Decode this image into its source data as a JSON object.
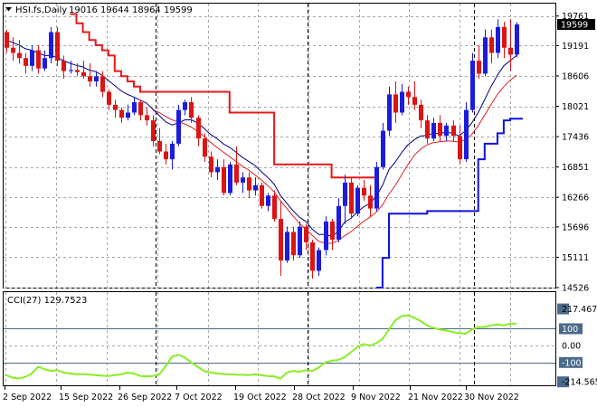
{
  "chart_data": [
    {
      "type": "candlestick",
      "header": {
        "symbol": "HSI.fs,Daily",
        "ohlc_text": "19016 19644 18964 19599"
      },
      "last_price_label": "19599",
      "last_price": 19599,
      "ylim": [
        14526,
        20000
      ],
      "y_ticks": [
        "19761",
        "19191",
        "18606",
        "18021",
        "17436",
        "16851",
        "16266",
        "15696",
        "15111",
        "14526"
      ],
      "x_tick_labels": [
        "2 Sep 2022",
        "15 Sep 2022",
        "26 Sep 2022",
        "7 Oct 2022",
        "19 Oct 2022",
        "28 Oct 2022",
        "9 Nov 2022",
        "21 Nov 2022",
        "30 Nov 2022"
      ],
      "colors": {
        "bull": "#1c1cdc",
        "bear": "#dc1414",
        "fast_ma": "#000080",
        "slow_ma": "#e02020",
        "trail_high": "#e81818",
        "trail_low": "#1010e0",
        "grid": "#a9a9a9",
        "marker": "#000000"
      },
      "candles": [
        [
          19450,
          19500,
          19050,
          19150
        ],
        [
          19150,
          19350,
          18900,
          19050
        ],
        [
          19050,
          19300,
          18850,
          18950
        ],
        [
          18950,
          19050,
          18650,
          18800
        ],
        [
          18800,
          19200,
          18700,
          19100
        ],
        [
          19100,
          19200,
          18650,
          18750
        ],
        [
          18750,
          19100,
          18700,
          18950
        ],
        [
          18950,
          19550,
          18850,
          19450
        ],
        [
          19450,
          19550,
          18800,
          18900
        ],
        [
          18900,
          19000,
          18550,
          18700
        ],
        [
          18700,
          18900,
          18650,
          18720
        ],
        [
          18720,
          18850,
          18600,
          18680
        ],
        [
          18680,
          18900,
          18550,
          18600
        ],
        [
          18600,
          18850,
          18400,
          18500
        ],
        [
          18500,
          18700,
          18400,
          18600
        ],
        [
          18600,
          18700,
          18200,
          18300
        ],
        [
          18300,
          18350,
          17950,
          18050
        ],
        [
          18050,
          18150,
          17800,
          17950
        ],
        [
          17950,
          18000,
          17700,
          17800
        ],
        [
          17800,
          18050,
          17750,
          17900
        ],
        [
          17900,
          18200,
          17850,
          18100
        ],
        [
          18100,
          18150,
          17750,
          17850
        ],
        [
          17850,
          18000,
          17650,
          17750
        ],
        [
          17750,
          17850,
          17250,
          17350
        ],
        [
          17350,
          17600,
          17100,
          17150
        ],
        [
          17150,
          17300,
          16900,
          17000
        ],
        [
          17000,
          17350,
          16800,
          17300
        ],
        [
          17300,
          18050,
          17250,
          17950
        ],
        [
          17950,
          18150,
          17850,
          18100
        ],
        [
          18100,
          18200,
          17700,
          17800
        ],
        [
          17800,
          17850,
          17250,
          17400
        ],
        [
          17400,
          17500,
          16950,
          17050
        ],
        [
          17050,
          17150,
          16650,
          16750
        ],
        [
          16750,
          17000,
          16600,
          16850
        ],
        [
          16850,
          17000,
          16300,
          16350
        ],
        [
          16350,
          16950,
          16300,
          16900
        ],
        [
          16900,
          17250,
          16500,
          16550
        ],
        [
          16550,
          16750,
          16350,
          16650
        ],
        [
          16650,
          16750,
          16250,
          16400
        ],
        [
          16400,
          16650,
          16300,
          16500
        ],
        [
          16500,
          16550,
          16050,
          16100
        ],
        [
          16100,
          16350,
          16000,
          16300
        ],
        [
          16300,
          16400,
          15800,
          15850
        ],
        [
          15850,
          16200,
          14750,
          15050
        ],
        [
          15050,
          15700,
          15000,
          15600
        ],
        [
          15600,
          15700,
          15050,
          15150
        ],
        [
          15150,
          15800,
          15100,
          15700
        ],
        [
          15700,
          15750,
          15250,
          15400
        ],
        [
          15400,
          15450,
          14700,
          14850
        ],
        [
          14850,
          15300,
          14750,
          15250
        ],
        [
          15250,
          15900,
          15150,
          15800
        ],
        [
          15800,
          15850,
          15250,
          15450
        ],
        [
          15450,
          16250,
          15400,
          16100
        ],
        [
          16100,
          16700,
          15750,
          16550
        ],
        [
          16550,
          16650,
          15850,
          15950
        ],
        [
          15950,
          16500,
          15900,
          16450
        ],
        [
          16450,
          16600,
          16200,
          16300
        ],
        [
          16300,
          16500,
          15900,
          16050
        ],
        [
          16050,
          16950,
          16000,
          16850
        ],
        [
          16850,
          17700,
          16800,
          17550
        ],
        [
          17550,
          18400,
          17450,
          18250
        ],
        [
          18250,
          18500,
          17700,
          17900
        ],
        [
          17900,
          18450,
          17850,
          18300
        ],
        [
          18300,
          18400,
          18050,
          18200
        ],
        [
          18200,
          18500,
          17950,
          18050
        ],
        [
          18050,
          18150,
          17600,
          17750
        ],
        [
          17750,
          17850,
          17300,
          17400
        ],
        [
          17400,
          17800,
          17350,
          17700
        ],
        [
          17700,
          17850,
          17350,
          17450
        ],
        [
          17450,
          17700,
          17350,
          17650
        ],
        [
          17650,
          17750,
          17350,
          17450
        ],
        [
          17450,
          17650,
          16900,
          17000
        ],
        [
          17000,
          18100,
          16950,
          17950
        ],
        [
          17950,
          19050,
          17900,
          18900
        ],
        [
          18900,
          19200,
          18550,
          18650
        ],
        [
          18650,
          19500,
          18600,
          19350
        ],
        [
          19350,
          19500,
          18850,
          19050
        ],
        [
          19050,
          19700,
          18950,
          19550
        ],
        [
          19550,
          19650,
          18950,
          19150
        ],
        [
          19150,
          19700,
          18700,
          19016
        ],
        [
          19016,
          19644,
          18964,
          19599
        ]
      ],
      "fast_ma": [
        19300,
        19250,
        19200,
        19130,
        19100,
        19050,
        19000,
        19000,
        18960,
        18900,
        18850,
        18810,
        18780,
        18720,
        18690,
        18620,
        18520,
        18420,
        18320,
        18250,
        18200,
        18140,
        18080,
        17960,
        17840,
        17720,
        17660,
        17700,
        17760,
        17760,
        17700,
        17600,
        17480,
        17400,
        17300,
        17230,
        17140,
        17040,
        16960,
        16880,
        16760,
        16650,
        16520,
        16300,
        16150,
        16000,
        15880,
        15800,
        15650,
        15550,
        15550,
        15520,
        15600,
        15780,
        15860,
        15980,
        16080,
        16150,
        16280,
        16500,
        16800,
        16950,
        17130,
        17280,
        17380,
        17450,
        17460,
        17500,
        17500,
        17520,
        17500,
        17450,
        17550,
        17700,
        17900,
        18150,
        18400,
        18620,
        18800,
        18900,
        19000
      ],
      "slow_ma": [
        null,
        null,
        null,
        null,
        null,
        null,
        null,
        null,
        null,
        null,
        null,
        null,
        null,
        null,
        null,
        null,
        null,
        null,
        null,
        null,
        null,
        null,
        null,
        17950,
        17900,
        17820,
        17760,
        17720,
        17680,
        17620,
        17540,
        17440,
        17330,
        17230,
        17140,
        17050,
        16960,
        16870,
        16790,
        16700,
        16600,
        16490,
        16370,
        16200,
        16050,
        15900,
        15760,
        15650,
        15530,
        15420,
        15380,
        15380,
        15430,
        15520,
        15600,
        15700,
        15800,
        15880,
        15980,
        16120,
        16330,
        16500,
        16700,
        16900,
        17080,
        17200,
        17280,
        17320,
        17340,
        17350,
        17350,
        17330,
        17380,
        17480,
        17650,
        17850,
        18050,
        18250,
        18400,
        18520,
        18620
      ],
      "trail_high": [
        null,
        null,
        null,
        null,
        null,
        null,
        null,
        null,
        null,
        null,
        19800,
        19620,
        19450,
        19300,
        19200,
        19100,
        19000,
        18700,
        18600,
        18500,
        18400,
        18300,
        18300,
        18300,
        18300,
        18300,
        18300,
        18300,
        18300,
        18300,
        18300,
        18300,
        18300,
        18300,
        18300,
        17900,
        17900,
        17900,
        17900,
        17900,
        17900,
        17900,
        16900,
        16900,
        16900,
        16900,
        16900,
        16900,
        16900,
        16900,
        16900,
        16650,
        16650,
        16650,
        16650,
        16650,
        16650,
        16650,
        16650,
        null,
        null,
        null,
        null,
        null,
        null,
        null,
        null,
        null,
        null,
        null,
        null,
        null,
        null,
        null,
        null,
        null,
        null,
        null,
        null,
        null,
        null
      ],
      "trail_low": [
        null,
        null,
        null,
        null,
        null,
        null,
        null,
        null,
        null,
        null,
        null,
        null,
        null,
        null,
        null,
        null,
        null,
        null,
        null,
        null,
        null,
        null,
        null,
        null,
        null,
        null,
        null,
        null,
        null,
        null,
        null,
        null,
        null,
        null,
        null,
        null,
        null,
        null,
        null,
        null,
        null,
        null,
        null,
        null,
        null,
        null,
        null,
        null,
        null,
        null,
        null,
        null,
        null,
        null,
        null,
        null,
        null,
        null,
        14526,
        15100,
        15950,
        15950,
        15950,
        15950,
        15950,
        15950,
        16000,
        16000,
        16000,
        16000,
        16000,
        16000,
        16000,
        16000,
        17000,
        17300,
        17300,
        17500,
        17750,
        17780,
        17780,
        17780
      ]
    },
    {
      "type": "line",
      "title": "CCI(27) 129.7523",
      "ylim": [
        -235,
        317
      ],
      "y_ticks": [
        "217.4671",
        "100",
        "0.00",
        "-100",
        "-214.565"
      ],
      "y_tick_values": [
        217.4671,
        100,
        0,
        -100,
        -214.565
      ],
      "series": [
        {
          "values": [
            -175,
            -190,
            -195,
            -185,
            -165,
            -125,
            -140,
            -150,
            -145,
            -160,
            -165,
            -170,
            -168,
            -172,
            -175,
            -178,
            -180,
            -175,
            -170,
            -160,
            -165,
            -180,
            -182,
            -180,
            -170,
            -120,
            -65,
            -55,
            -70,
            -100,
            -125,
            -150,
            -160,
            -165,
            -168,
            -170,
            -172,
            -173,
            -175,
            -170,
            -175,
            -180,
            -182,
            -195,
            -160,
            -150,
            -155,
            -145,
            -150,
            -130,
            -100,
            -90,
            -85,
            -70,
            -40,
            -10,
            10,
            0,
            15,
            40,
            95,
            150,
            175,
            180,
            165,
            145,
            120,
            105,
            95,
            90,
            80,
            75,
            70,
            95,
            110,
            110,
            120,
            125,
            120,
            130,
            129.75
          ]
        }
      ]
    }
  ]
}
